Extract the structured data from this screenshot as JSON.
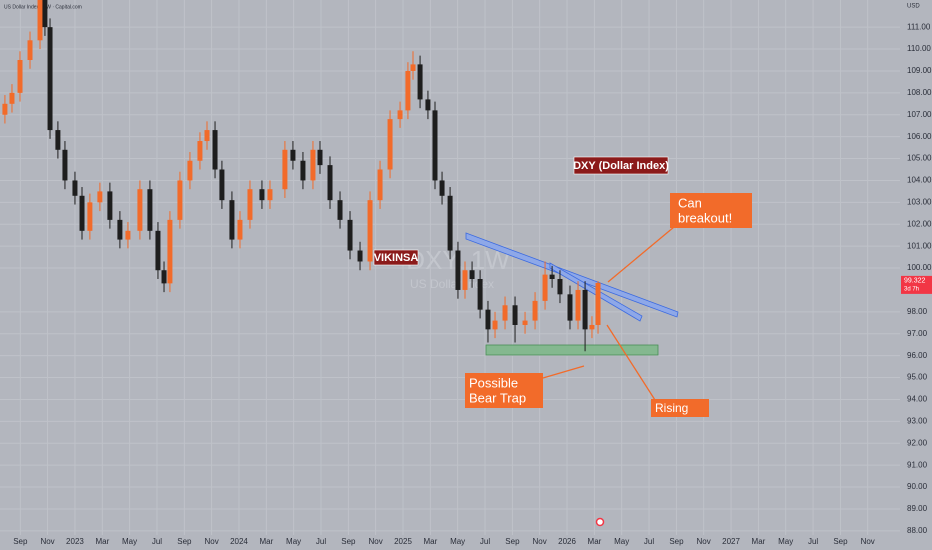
{
  "chart_data": {
    "type": "candlestick",
    "title": "US Dollar Index · 1W · Capital.com",
    "y_label": "USD",
    "watermark": [
      "DXY, 1W",
      "US Dollar Index"
    ],
    "annotations": [
      "DXY (Dollar Index)",
      "VIKINSA",
      [
        "Can",
        "breakout!"
      ],
      [
        "Possible",
        "Bear Trap"
      ],
      "Rising"
    ],
    "countdown": "3d 7h",
    "up_color": "#f26b2a",
    "down_color": "#1e1e1e",
    "grid": true,
    "xlim": [
      2022.543,
      2028.03
    ],
    "ylim": [
      87.81,
      112.24
    ],
    "x": [
      2022.573,
      2022.616,
      2022.665,
      2022.726,
      2022.787,
      2022.817,
      2022.848,
      2022.896,
      2022.939,
      2023.0,
      2023.043,
      2023.091,
      2023.152,
      2023.213,
      2023.274,
      2023.323,
      2023.396,
      2023.457,
      2023.506,
      2023.543,
      2023.579,
      2023.64,
      2023.701,
      2023.762,
      2023.805,
      2023.854,
      2023.896,
      2023.957,
      2024.006,
      2024.067,
      2024.14,
      2024.189,
      2024.28,
      2024.329,
      2024.39,
      2024.451,
      2024.494,
      2024.555,
      2024.616,
      2024.677,
      2024.738,
      2024.799,
      2024.86,
      2024.921,
      2024.982,
      2025.03,
      2025.061,
      2025.104,
      2025.152,
      2025.195,
      2025.238,
      2025.287,
      2025.335,
      2025.378,
      2025.421,
      2025.47,
      2025.518,
      2025.561,
      2025.622,
      2025.683,
      2025.744,
      2025.805,
      2025.866,
      2025.909,
      2025.957,
      2026.018,
      2026.067,
      2026.11,
      2026.152,
      2026.189
    ],
    "open": [
      107.0,
      107.5,
      108,
      109.5,
      110.4,
      112.3,
      111,
      106.3,
      105.4,
      104,
      103.3,
      101.7,
      103,
      103.5,
      102.2,
      101.3,
      101.7,
      103.6,
      101.7,
      99.9,
      99.3,
      102.2,
      104,
      104.9,
      105.8,
      106.3,
      104.5,
      103.1,
      101.3,
      102.2,
      103.6,
      103.1,
      103.6,
      105.4,
      104.9,
      104,
      105.4,
      104.7,
      103.1,
      102.2,
      100.8,
      100.3,
      103.1,
      104.5,
      106.8,
      107.2,
      109,
      109.3,
      107.7,
      107.2,
      104,
      103.3,
      100.8,
      99,
      99.9,
      99.5,
      98.1,
      97.2,
      97.6,
      98.3,
      97.4,
      97.6,
      98.5,
      99.7,
      99.5,
      98.8,
      97.6,
      99,
      97.2,
      97.4
    ],
    "high": [
      107.9,
      108.4,
      109.9,
      110.8,
      112.7,
      112.7,
      111.4,
      106.7,
      105.8,
      104.4,
      103.7,
      103.4,
      103.9,
      103.9,
      102.6,
      102.1,
      104.0,
      104.0,
      102.1,
      100.3,
      102.6,
      104.4,
      105.3,
      106.2,
      106.7,
      106.7,
      104.9,
      103.5,
      102.6,
      104.0,
      104.0,
      104.0,
      105.8,
      105.8,
      105.3,
      105.8,
      105.8,
      105.1,
      103.5,
      102.6,
      101.2,
      103.5,
      104.9,
      107.2,
      107.6,
      109.4,
      109.9,
      109.7,
      108.1,
      107.6,
      104.4,
      103.7,
      101.2,
      100.3,
      100.3,
      99.9,
      98.5,
      98.0,
      98.7,
      98.7,
      98.0,
      98.9,
      100.3,
      100.1,
      99.9,
      99.2,
      99.4,
      99.4,
      97.8,
      99.4
    ],
    "low": [
      106.6,
      107.1,
      107.6,
      109.1,
      110.0,
      110.6,
      105.9,
      105.0,
      103.6,
      102.9,
      101.3,
      101.3,
      102.6,
      101.8,
      100.9,
      100.9,
      101.3,
      101.3,
      99.5,
      98.9,
      98.9,
      101.8,
      103.6,
      104.5,
      105.4,
      104.1,
      102.7,
      100.9,
      100.9,
      101.8,
      102.7,
      102.7,
      103.2,
      104.5,
      103.6,
      103.6,
      104.3,
      102.7,
      101.8,
      100.4,
      99.9,
      99.9,
      102.7,
      104.1,
      106.4,
      106.8,
      108.6,
      107.3,
      106.8,
      103.6,
      102.9,
      100.4,
      98.6,
      98.6,
      99.1,
      97.7,
      96.6,
      96.8,
      97.2,
      96.6,
      97.0,
      97.2,
      98.1,
      99.1,
      98.4,
      97.2,
      97.2,
      96.2,
      96.8,
      97.0
    ],
    "close": [
      107.5,
      108,
      109.5,
      110.4,
      112.3,
      111,
      106.3,
      105.4,
      104,
      103.3,
      101.7,
      103,
      103.5,
      102.2,
      101.3,
      101.7,
      103.6,
      101.7,
      99.9,
      99.3,
      102.2,
      104,
      104.9,
      105.8,
      106.3,
      104.5,
      103.1,
      101.3,
      102.2,
      103.6,
      103.1,
      103.6,
      105.4,
      104.9,
      104,
      105.4,
      104.7,
      103.1,
      102.2,
      100.8,
      100.3,
      103.1,
      104.5,
      106.8,
      107.2,
      109,
      109.3,
      107.7,
      107.2,
      104,
      103.3,
      100.8,
      99,
      99.9,
      99.5,
      98.1,
      97.2,
      97.6,
      98.3,
      97.4,
      97.6,
      98.5,
      99.7,
      99.5,
      98.8,
      97.6,
      99,
      97.2,
      97.4,
      99.322
    ],
    "yticks": [
      {
        "value": 88,
        "label": "88.00"
      },
      {
        "value": 89,
        "label": "89.00"
      },
      {
        "value": 90,
        "label": "90.00"
      },
      {
        "value": 91,
        "label": "91.00"
      },
      {
        "value": 92,
        "label": "92.00"
      },
      {
        "value": 93,
        "label": "93.00"
      },
      {
        "value": 94,
        "label": "94.00"
      },
      {
        "value": 95,
        "label": "95.00"
      },
      {
        "value": 96,
        "label": "96.00"
      },
      {
        "value": 97,
        "label": "97.00"
      },
      {
        "value": 98,
        "label": "98.00"
      },
      {
        "value": 100,
        "label": "100.00"
      },
      {
        "value": 101,
        "label": "101.00"
      },
      {
        "value": 102,
        "label": "102.00"
      },
      {
        "value": 103,
        "label": "103.00"
      },
      {
        "value": 104,
        "label": "104.00"
      },
      {
        "value": 105,
        "label": "105.00"
      },
      {
        "value": 106,
        "label": "106.00"
      },
      {
        "value": 107,
        "label": "107.00"
      },
      {
        "value": 108,
        "label": "108.00"
      },
      {
        "value": 109,
        "label": "109.00"
      },
      {
        "value": 110,
        "label": "110.00"
      },
      {
        "value": 111,
        "label": "111.00"
      }
    ],
    "xticks": [
      {
        "value": 2022.667,
        "label": "Sep"
      },
      {
        "value": 2022.833,
        "label": "Nov"
      },
      {
        "value": 2023.0,
        "label": "2023"
      },
      {
        "value": 2023.167,
        "label": "Mar"
      },
      {
        "value": 2023.333,
        "label": "May"
      },
      {
        "value": 2023.5,
        "label": "Jul"
      },
      {
        "value": 2023.667,
        "label": "Sep"
      },
      {
        "value": 2023.833,
        "label": "Nov"
      },
      {
        "value": 2024.0,
        "label": "2024"
      },
      {
        "value": 2024.167,
        "label": "Mar"
      },
      {
        "value": 2024.333,
        "label": "May"
      },
      {
        "value": 2024.5,
        "label": "Jul"
      },
      {
        "value": 2024.667,
        "label": "Sep"
      },
      {
        "value": 2024.833,
        "label": "Nov"
      },
      {
        "value": 2025.0,
        "label": "2025"
      },
      {
        "value": 2025.167,
        "label": "Mar"
      },
      {
        "value": 2025.333,
        "label": "May"
      },
      {
        "value": 2025.5,
        "label": "Jul"
      },
      {
        "value": 2025.667,
        "label": "Sep"
      },
      {
        "value": 2025.833,
        "label": "Nov"
      },
      {
        "value": 2026.0,
        "label": "2026"
      },
      {
        "value": 2026.167,
        "label": "Mar"
      },
      {
        "value": 2026.333,
        "label": "May"
      },
      {
        "value": 2026.5,
        "label": "Jul"
      },
      {
        "value": 2026.667,
        "label": "Sep"
      },
      {
        "value": 2026.833,
        "label": "Nov"
      },
      {
        "value": 2027.0,
        "label": "2027"
      },
      {
        "value": 2027.167,
        "label": "Mar"
      },
      {
        "value": 2027.333,
        "label": "May"
      },
      {
        "value": 2027.5,
        "label": "Jul"
      },
      {
        "value": 2027.667,
        "label": "Sep"
      },
      {
        "value": 2027.833,
        "label": "Nov"
      }
    ]
  }
}
